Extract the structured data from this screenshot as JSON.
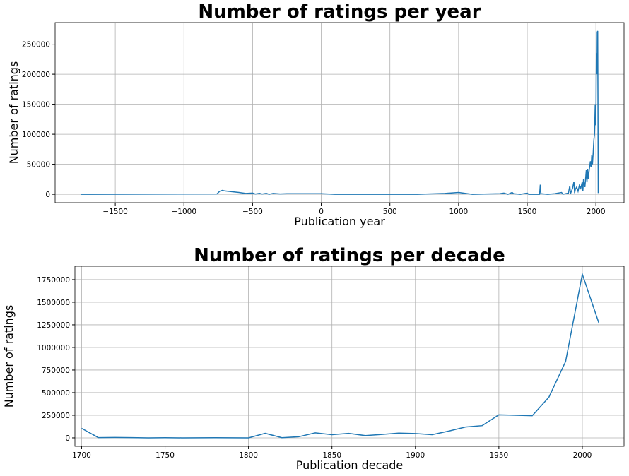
{
  "chart_data": [
    {
      "type": "line",
      "title": "Number of ratings per year",
      "x_label": "Publication year",
      "y_label": "Number of ratings",
      "x": [
        -1750,
        -760,
        -740,
        -720,
        -700,
        -600,
        -550,
        -500,
        -480,
        -450,
        -430,
        -400,
        -380,
        -350,
        -300,
        -250,
        0,
        100,
        500,
        700,
        900,
        1000,
        1100,
        1300,
        1330,
        1360,
        1390,
        1400,
        1450,
        1500,
        1510,
        1590,
        1595,
        1600,
        1650,
        1700,
        1750,
        1760,
        1800,
        1810,
        1815,
        1830,
        1840,
        1845,
        1850,
        1860,
        1870,
        1880,
        1890,
        1900,
        1905,
        1910,
        1920,
        1930,
        1935,
        1940,
        1945,
        1950,
        1960,
        1965,
        1970,
        1975,
        1980,
        1985,
        1990,
        1995,
        1998,
        2000,
        2003,
        2005,
        2008,
        2010,
        2013,
        2015,
        2017
      ],
      "y": [
        0,
        500,
        5000,
        6500,
        5500,
        3000,
        1500,
        2000,
        500,
        1500,
        500,
        1500,
        0,
        1500,
        500,
        1000,
        1000,
        0,
        0,
        0,
        1500,
        3000,
        0,
        1000,
        2000,
        0,
        3000,
        1000,
        0,
        2000,
        0,
        0,
        16000,
        1000,
        0,
        1000,
        3000,
        0,
        2000,
        14000,
        1000,
        10000,
        21000,
        2000,
        8000,
        12000,
        5000,
        15000,
        10000,
        20000,
        5000,
        25000,
        12000,
        40000,
        20000,
        42000,
        25000,
        38000,
        55000,
        45000,
        65000,
        50000,
        68000,
        90000,
        100000,
        150000,
        115000,
        125000,
        230000,
        235000,
        200000,
        270000,
        272000,
        150000,
        2000
      ],
      "color": "#1f77b4",
      "grid": true,
      "xlim": [
        -1938,
        2205
      ],
      "ylim": [
        -14000,
        286000
      ],
      "xticks": [
        {
          "value": -1500,
          "label": "−1500"
        },
        {
          "value": -1000,
          "label": "−1000"
        },
        {
          "value": -500,
          "label": "−500"
        },
        0,
        500,
        1000,
        1500,
        2000
      ],
      "yticks": [
        0,
        50000,
        100000,
        150000,
        200000,
        250000
      ]
    },
    {
      "type": "line",
      "title": "Number of ratings per decade",
      "x_label": "Publication decade",
      "y_label": "Number of ratings",
      "x": [
        1700,
        1710,
        1720,
        1730,
        1740,
        1750,
        1760,
        1770,
        1780,
        1790,
        1800,
        1810,
        1820,
        1830,
        1840,
        1850,
        1860,
        1870,
        1880,
        1890,
        1900,
        1910,
        1920,
        1930,
        1940,
        1950,
        1960,
        1970,
        1980,
        1990,
        2000,
        2010
      ],
      "y": [
        105000,
        3000,
        5000,
        3000,
        0,
        2000,
        0,
        1000,
        2000,
        1000,
        0,
        50000,
        2000,
        12000,
        55000,
        35000,
        50000,
        25000,
        38000,
        52000,
        48000,
        35000,
        75000,
        120000,
        135000,
        255000,
        250000,
        245000,
        450000,
        845000,
        1810000,
        1265000
      ],
      "color": "#1f77b4",
      "grid": true,
      "xlim": [
        1696,
        2025
      ],
      "ylim": [
        -94000,
        1898000
      ],
      "xticks": [
        1700,
        1750,
        1800,
        1850,
        1900,
        1950,
        2000
      ],
      "yticks": [
        0,
        250000,
        500000,
        750000,
        1000000,
        1250000,
        1500000,
        1750000
      ]
    }
  ]
}
